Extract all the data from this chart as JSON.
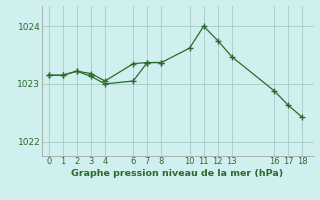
{
  "series1_x": [
    0,
    1,
    2,
    3,
    4,
    6,
    7,
    8,
    10,
    11,
    12,
    13,
    16,
    17,
    18
  ],
  "series1_y": [
    1023.15,
    1023.15,
    1023.22,
    1023.18,
    1023.05,
    1023.35,
    1023.37,
    1023.37,
    1023.62,
    1024.0,
    1023.75,
    1023.47,
    1022.88,
    1022.63,
    1022.42
  ],
  "series2_x": [
    0,
    1,
    2,
    3,
    4,
    6,
    7,
    8
  ],
  "series2_y": [
    1023.15,
    1023.15,
    1023.22,
    1023.13,
    1023.0,
    1023.05,
    1023.37,
    1023.37
  ],
  "color": "#2d6a2d",
  "bg_color": "#cff0ee",
  "grid_color": "#aacfcc",
  "xlabel": "Graphe pression niveau de la mer (hPa)",
  "ylim": [
    1021.75,
    1024.35
  ],
  "xlim": [
    -0.5,
    18.8
  ],
  "yticks": [
    1022,
    1023,
    1024
  ],
  "xticks": [
    0,
    1,
    2,
    3,
    4,
    6,
    7,
    8,
    10,
    11,
    12,
    13,
    16,
    17,
    18
  ]
}
